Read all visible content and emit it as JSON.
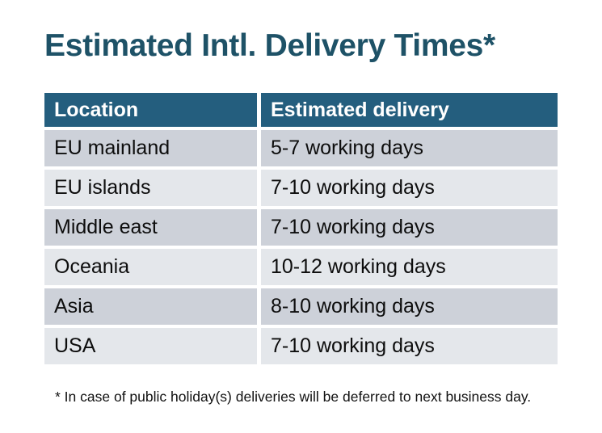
{
  "chart_data": {
    "type": "table",
    "title": "Estimated Intl. Delivery Times*",
    "columns": [
      "Location",
      "Estimated delivery"
    ],
    "rows": [
      [
        "EU mainland",
        "5-7 working days"
      ],
      [
        "EU islands",
        "7-10 working days"
      ],
      [
        "Middle east",
        "7-10 working days"
      ],
      [
        "Oceania",
        "10-12 working days"
      ],
      [
        "Asia",
        "8-10 working days"
      ],
      [
        "USA",
        "7-10 working days"
      ]
    ],
    "footnote": "* In case of public holiday(s) deliveries will be deferred to next business day.",
    "layout_hints": {
      "striping": [
        "dark",
        "light",
        "dark",
        "light",
        "dark",
        "light"
      ],
      "grid": "off",
      "header_position": "top"
    }
  },
  "colors": {
    "title_color": "#1E5267",
    "header_bg": "#245E7E",
    "header_text": "#FFFFFF",
    "row_dark": "#CDD1D9",
    "row_light": "#E4E7EB",
    "cell_text": "#0D0D0D",
    "footnote_color": "#111111",
    "page_bg": "#FFFFFF"
  }
}
